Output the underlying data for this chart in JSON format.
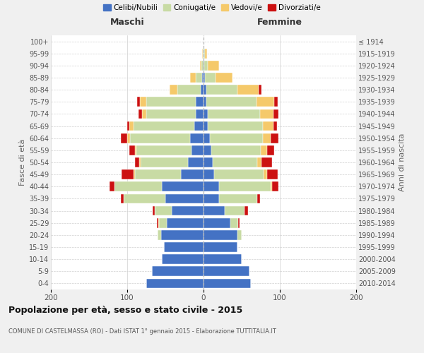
{
  "age_groups": [
    "0-4",
    "5-9",
    "10-14",
    "15-19",
    "20-24",
    "25-29",
    "30-34",
    "35-39",
    "40-44",
    "45-49",
    "50-54",
    "55-59",
    "60-64",
    "65-69",
    "70-74",
    "75-79",
    "80-84",
    "85-89",
    "90-94",
    "95-99",
    "100+"
  ],
  "birth_years": [
    "2010-2014",
    "2005-2009",
    "2000-2004",
    "1995-1999",
    "1990-1994",
    "1985-1989",
    "1980-1984",
    "1975-1979",
    "1970-1974",
    "1965-1969",
    "1960-1964",
    "1955-1959",
    "1950-1954",
    "1945-1949",
    "1940-1944",
    "1935-1939",
    "1930-1934",
    "1925-1929",
    "1920-1924",
    "1915-1919",
    "≤ 1914"
  ],
  "maschi": {
    "celibi": [
      75,
      68,
      55,
      52,
      56,
      48,
      42,
      50,
      55,
      30,
      20,
      16,
      18,
      12,
      10,
      10,
      4,
      2,
      0,
      0,
      0
    ],
    "coniugati": [
      0,
      0,
      0,
      0,
      4,
      10,
      22,
      55,
      62,
      60,
      62,
      72,
      78,
      80,
      65,
      65,
      30,
      8,
      3,
      1,
      0
    ],
    "vedovi": [
      0,
      0,
      0,
      0,
      0,
      1,
      0,
      0,
      0,
      2,
      2,
      2,
      4,
      5,
      6,
      8,
      10,
      8,
      2,
      1,
      0
    ],
    "divorziati": [
      0,
      0,
      0,
      0,
      0,
      2,
      3,
      3,
      6,
      15,
      6,
      7,
      8,
      3,
      4,
      4,
      0,
      0,
      0,
      0,
      0
    ]
  },
  "femmine": {
    "nubili": [
      62,
      60,
      50,
      44,
      44,
      35,
      28,
      20,
      20,
      14,
      12,
      10,
      8,
      6,
      6,
      4,
      4,
      2,
      1,
      0,
      0
    ],
    "coniugate": [
      0,
      0,
      0,
      0,
      6,
      10,
      26,
      50,
      68,
      65,
      58,
      65,
      70,
      72,
      68,
      65,
      40,
      14,
      5,
      2,
      0
    ],
    "vedove": [
      0,
      0,
      0,
      0,
      0,
      0,
      0,
      0,
      2,
      4,
      6,
      8,
      10,
      14,
      18,
      24,
      28,
      22,
      14,
      3,
      0
    ],
    "divorziate": [
      0,
      0,
      0,
      0,
      0,
      2,
      4,
      4,
      8,
      14,
      14,
      10,
      10,
      4,
      6,
      4,
      4,
      0,
      0,
      0,
      0
    ]
  },
  "colors": {
    "celibi": "#4472C4",
    "coniugati": "#c8dba4",
    "vedovi": "#f5c96a",
    "divorziati": "#cc1111"
  },
  "xlim": 200,
  "title": "Popolazione per età, sesso e stato civile - 2015",
  "subtitle": "COMUNE DI CASTELMASSA (RO) - Dati ISTAT 1° gennaio 2015 - Elaborazione TUTTITALIA.IT",
  "ylabel_left": "Fasce di età",
  "ylabel_right": "Anni di nascita",
  "xlabel_left": "Maschi",
  "xlabel_right": "Femmine",
  "legend_labels": [
    "Celibi/Nubili",
    "Coniugati/e",
    "Vedovi/e",
    "Divorziati/e"
  ],
  "bg_color": "#f0f0f0",
  "plot_bg": "#ffffff",
  "grid_color": "#d0d0d0"
}
